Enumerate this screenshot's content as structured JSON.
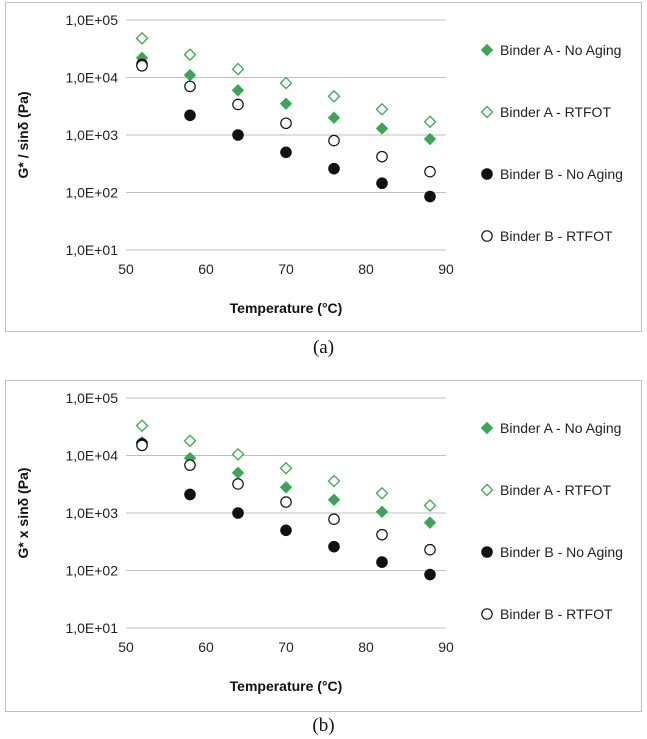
{
  "captions": [
    "(a)",
    "(b)"
  ],
  "legend": {
    "a_no_aging": "Binder A - No Aging",
    "a_rtfot": "Binder A - RTFOT",
    "b_no_aging": "Binder B - No Aging",
    "b_rtfot": "Binder B - RTFOT"
  },
  "colors": {
    "binder_a": "#3aa757",
    "binder_b": "#111111",
    "grid": "#bfbfbf"
  },
  "chart_data": [
    {
      "type": "scatter",
      "panel": "(a)",
      "xlabel": "Temperature (°C)",
      "ylabel": "G* / sinδ (Pa)",
      "xlim": [
        50,
        90
      ],
      "ylim": [
        10,
        100000
      ],
      "y_scale": "log",
      "x_ticks": [
        "50",
        "60",
        "70",
        "80",
        "90"
      ],
      "y_ticks": [
        "1,0E+01",
        "1,0E+02",
        "1,0E+03",
        "1,0E+04",
        "1,0E+05"
      ],
      "grid": "horizontal",
      "legend_position": "right",
      "x": [
        52,
        58,
        64,
        70,
        76,
        82,
        88
      ],
      "series": [
        {
          "name": "Binder A - No Aging",
          "marker": "diamond-filled",
          "values": [
            22000,
            11000,
            6000,
            3500,
            2000,
            1300,
            850
          ]
        },
        {
          "name": "Binder A - RTFOT",
          "marker": "diamond-open",
          "values": [
            48000,
            25000,
            14000,
            8000,
            4700,
            2800,
            1700
          ]
        },
        {
          "name": "Binder B - No Aging",
          "marker": "circle-filled",
          "values": [
            17000,
            2200,
            1000,
            500,
            260,
            145,
            85
          ]
        },
        {
          "name": "Binder B - RTFOT",
          "marker": "circle-open",
          "values": [
            16000,
            7000,
            3400,
            1600,
            800,
            420,
            230
          ]
        }
      ]
    },
    {
      "type": "scatter",
      "panel": "(b)",
      "xlabel": "Temperature (°C)",
      "ylabel": "G* x sinδ (Pa)",
      "xlim": [
        50,
        90
      ],
      "ylim": [
        10,
        100000
      ],
      "y_scale": "log",
      "x_ticks": [
        "50",
        "60",
        "70",
        "80",
        "90"
      ],
      "y_ticks": [
        "1,0E+01",
        "1,0E+02",
        "1,0E+03",
        "1,0E+04",
        "1,0E+05"
      ],
      "grid": "horizontal",
      "legend_position": "right",
      "x": [
        52,
        58,
        64,
        70,
        76,
        82,
        88
      ],
      "series": [
        {
          "name": "Binder A - No Aging",
          "marker": "diamond-filled",
          "values": [
            17000,
            9000,
            5000,
            2800,
            1700,
            1050,
            680
          ]
        },
        {
          "name": "Binder A - RTFOT",
          "marker": "diamond-open",
          "values": [
            33000,
            18000,
            10500,
            6000,
            3600,
            2200,
            1350
          ]
        },
        {
          "name": "Binder B - No Aging",
          "marker": "circle-filled",
          "values": [
            16000,
            2100,
            1000,
            500,
            260,
            140,
            85
          ]
        },
        {
          "name": "Binder B - RTFOT",
          "marker": "circle-open",
          "values": [
            15000,
            6800,
            3200,
            1550,
            780,
            420,
            230
          ]
        }
      ]
    }
  ]
}
